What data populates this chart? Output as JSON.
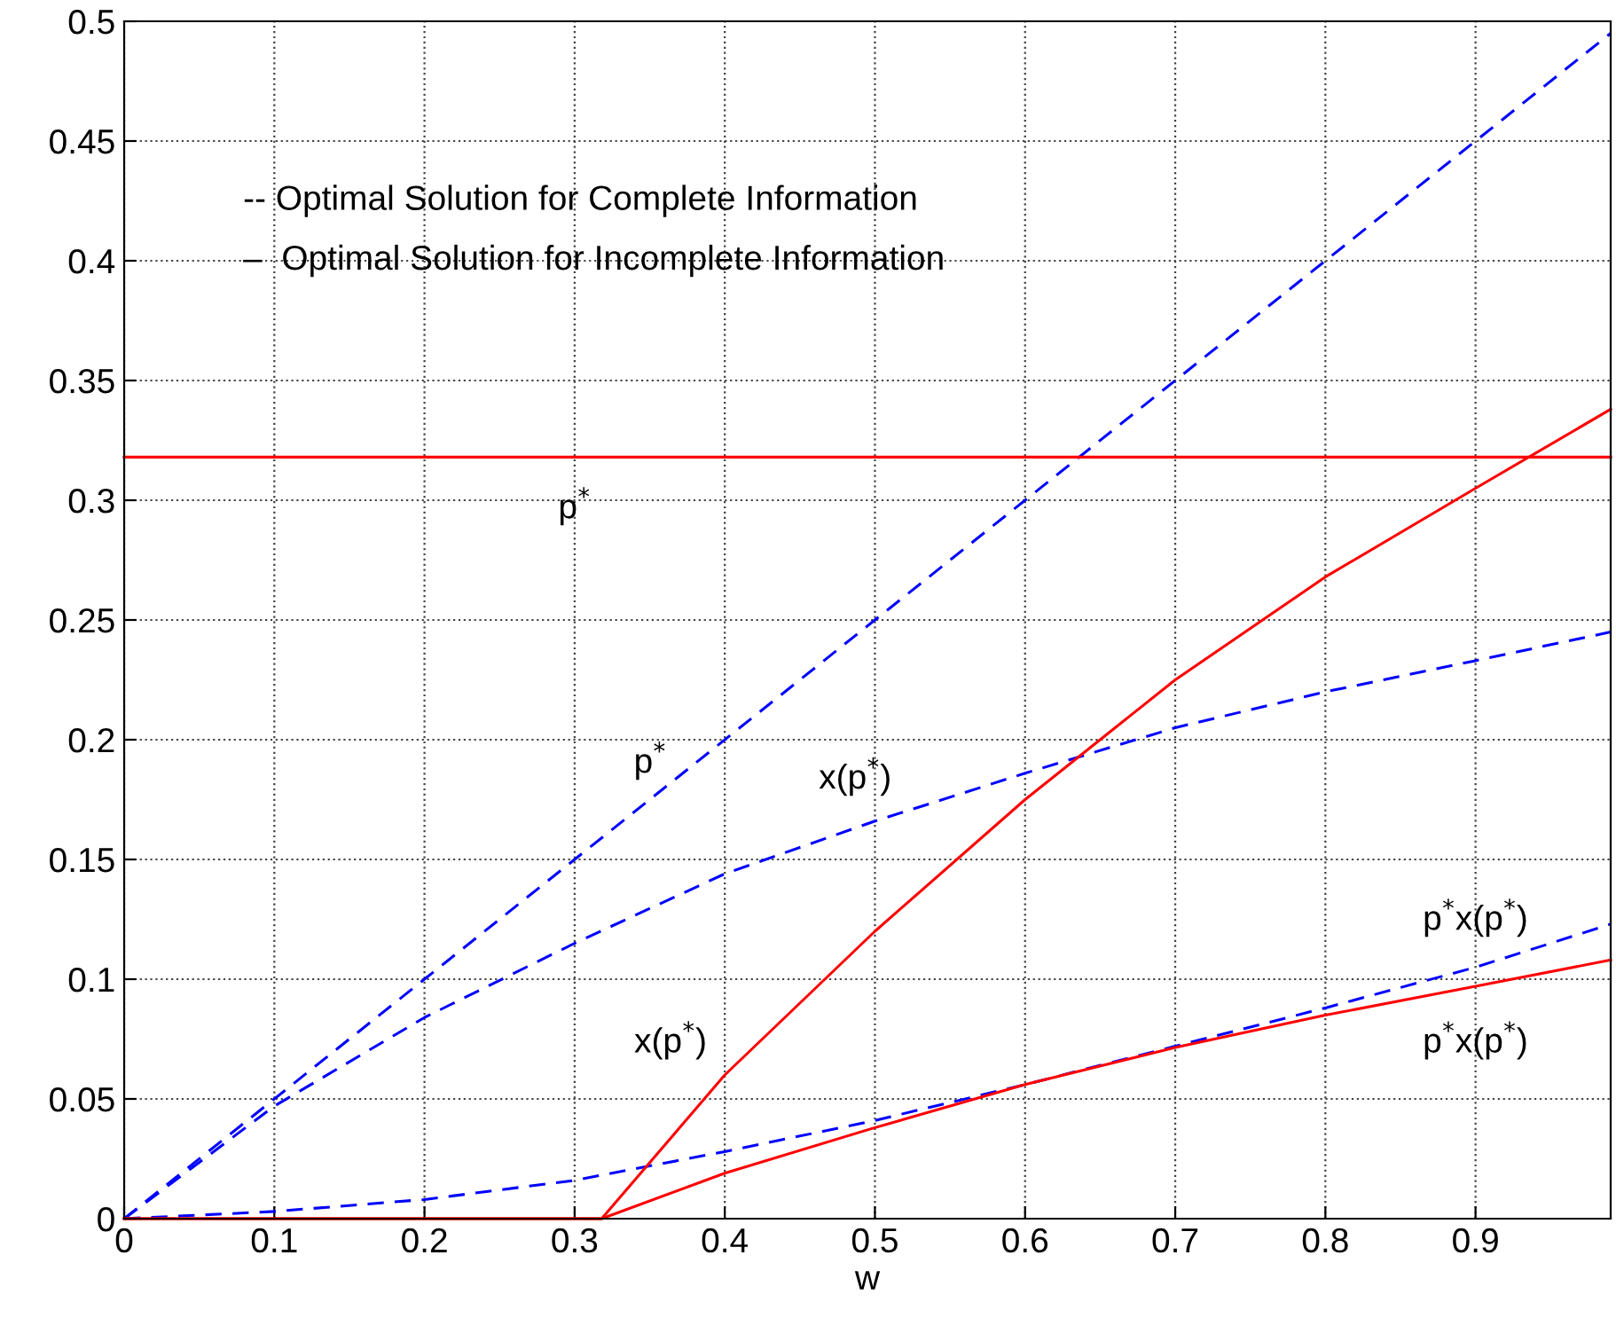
{
  "chart_data": {
    "type": "line",
    "xlabel": "w",
    "xlim": [
      0,
      0.99
    ],
    "ylim": [
      0,
      0.5
    ],
    "xticks": [
      0,
      0.1,
      0.2,
      0.3,
      0.4,
      0.5,
      0.6,
      0.7,
      0.8,
      0.9
    ],
    "yticks": [
      0,
      0.05,
      0.1,
      0.15,
      0.2,
      0.25,
      0.3,
      0.35,
      0.4,
      0.45,
      0.5
    ],
    "grid": true,
    "marker": "none",
    "series": [
      {
        "color": "#0000ff",
        "line_style": "dashed",
        "x": [
          0,
          0.99
        ],
        "values": [
          0,
          0.495
        ]
      },
      {
        "color": "#0000ff",
        "line_style": "dashed",
        "x": [
          0,
          0.1,
          0.2,
          0.3,
          0.4,
          0.5,
          0.6,
          0.7,
          0.8,
          0.9,
          0.99
        ],
        "values": [
          0,
          0.047,
          0.084,
          0.115,
          0.144,
          0.166,
          0.186,
          0.205,
          0.22,
          0.233,
          0.245
        ]
      },
      {
        "color": "#0000ff",
        "line_style": "dashed",
        "x": [
          0,
          0.1,
          0.2,
          0.3,
          0.4,
          0.5,
          0.6,
          0.7,
          0.8,
          0.9,
          0.99
        ],
        "values": [
          0,
          0.003,
          0.008,
          0.016,
          0.028,
          0.041,
          0.056,
          0.072,
          0.088,
          0.105,
          0.123
        ]
      },
      {
        "color": "#ff0000",
        "line_style": "solid",
        "x": [
          0,
          0.99
        ],
        "values": [
          0.318,
          0.318
        ]
      },
      {
        "color": "#ff0000",
        "line_style": "solid",
        "x": [
          0,
          0.318,
          0.4,
          0.5,
          0.6,
          0.7,
          0.8,
          0.9,
          0.99
        ],
        "values": [
          0,
          0,
          0.06,
          0.12,
          0.175,
          0.225,
          0.268,
          0.305,
          0.338
        ]
      },
      {
        "color": "#ff0000",
        "line_style": "solid",
        "x": [
          0,
          0.318,
          0.4,
          0.5,
          0.6,
          0.7,
          0.8,
          0.9,
          0.99
        ],
        "values": [
          0,
          0,
          0.019,
          0.038,
          0.056,
          0.0715,
          0.085,
          0.097,
          0.108
        ]
      }
    ],
    "annotations": [
      "-- Optimal Solution for Complete Information",
      "–  Optimal Solution for Incomplete Information",
      {
        "text": "p$^{*}$",
        "x": 0.3,
        "y": 0.318
      },
      {
        "text": "p$^{*}$",
        "x": 0.37,
        "y": 0.185
      },
      {
        "text": "x(p$^{*}$)",
        "x": 0.5,
        "y": 0.166
      },
      {
        "text": "x(p$^{*}$)",
        "x": 0.4,
        "y": 0.06
      },
      {
        "text": "p$^{*}$x(p$^{*}$)",
        "x": 0.9,
        "y": 0.105
      },
      {
        "text": "p$^{*}$x(p$^{*}$)",
        "x": 0.9,
        "y": 0.097
      }
    ]
  }
}
